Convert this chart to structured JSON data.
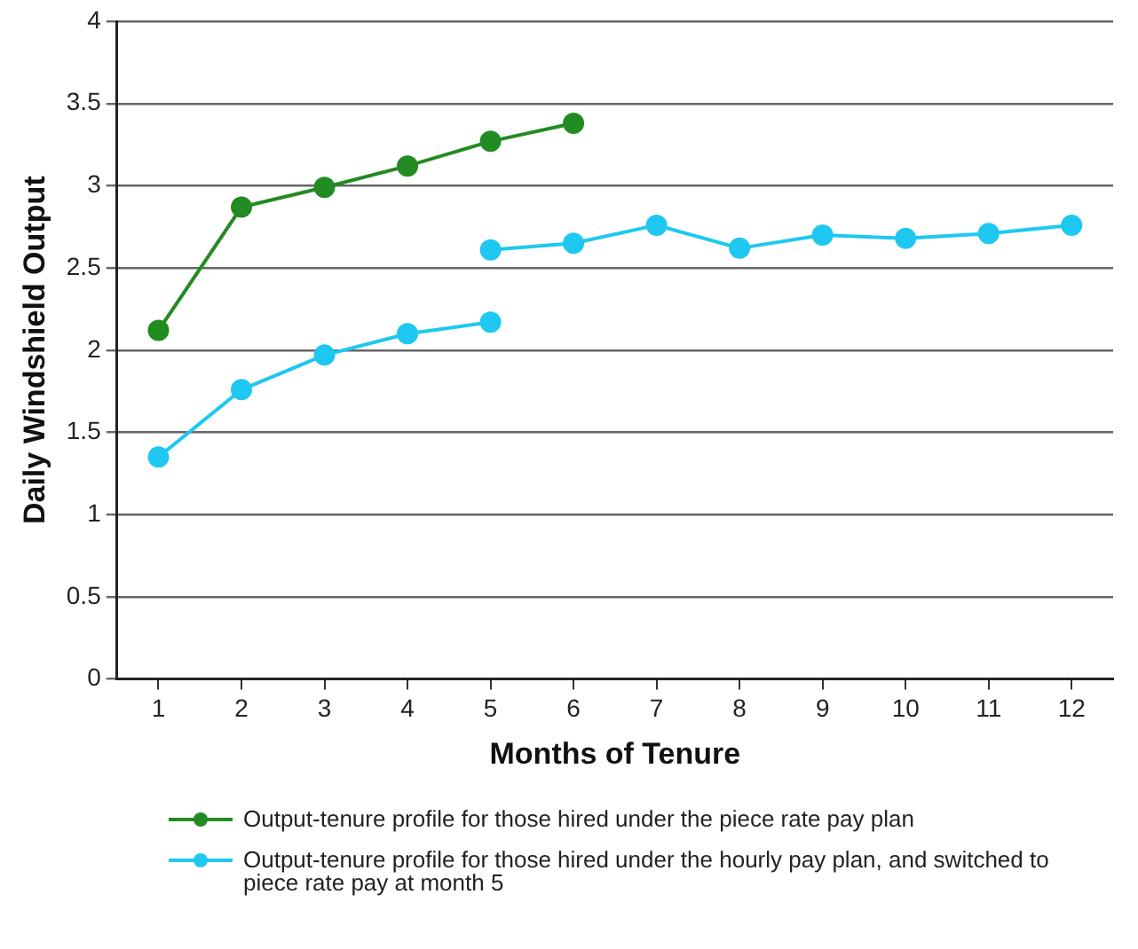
{
  "chart_data": {
    "type": "line",
    "xlabel": "Months of Tenure",
    "ylabel": "Daily Windshield Output",
    "xlim": [
      0.5,
      12.5
    ],
    "xticks": [
      1,
      2,
      3,
      4,
      5,
      6,
      7,
      8,
      9,
      10,
      11,
      12
    ],
    "ylim": [
      0,
      4
    ],
    "yticks": [
      0,
      0.5,
      1,
      1.5,
      2,
      2.5,
      3,
      3.5,
      4
    ],
    "grid": "y",
    "legend": "bottom",
    "marker": "circle",
    "line_style": "solid",
    "series": [
      {
        "name": "Output-tenure profile for those hired under the piece rate pay plan",
        "color": "#228b22",
        "x": [
          1,
          2,
          3,
          4,
          5,
          6
        ],
        "values": [
          2.12,
          2.87,
          2.99,
          3.12,
          3.27,
          3.38
        ]
      },
      {
        "name": "Output-tenure profile for those hired under the hourly pay plan, and switched to piece rate pay at month 5",
        "color": "#1ec8f0",
        "x": [
          1,
          2,
          3,
          4,
          5
        ],
        "values": [
          1.35,
          1.76,
          1.97,
          2.1,
          2.17
        ]
      },
      {
        "color": "#1ec8f0",
        "x": [
          5,
          6,
          7,
          8,
          9,
          10,
          11,
          12
        ],
        "values": [
          2.61,
          2.65,
          2.76,
          2.62,
          2.7,
          2.68,
          2.71,
          2.76
        ]
      }
    ]
  }
}
